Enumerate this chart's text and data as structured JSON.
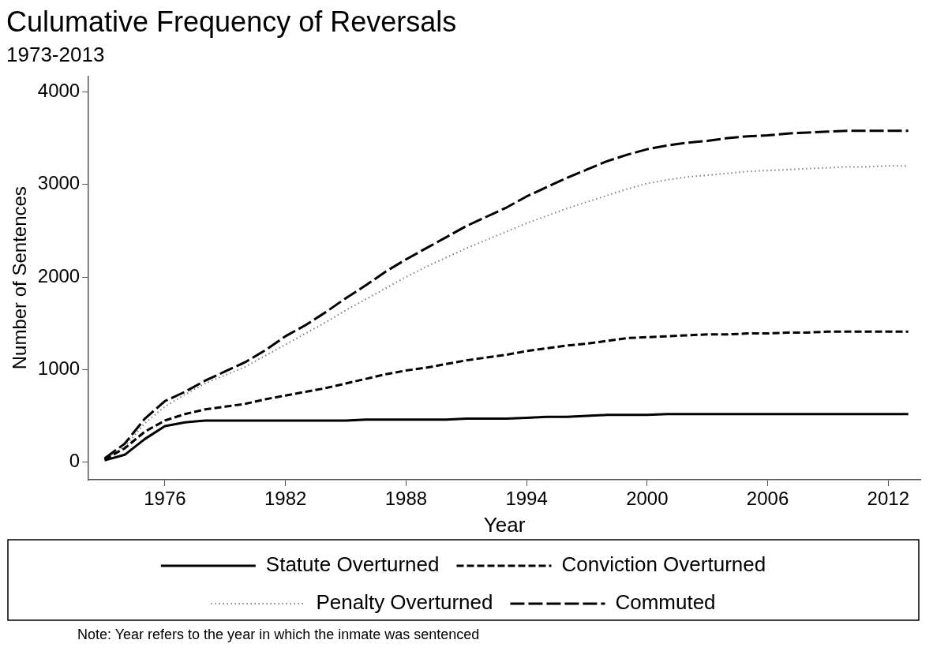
{
  "chart_data": {
    "type": "line",
    "title": "Culumative Frequency of Reversals",
    "subtitle": "1973-2013",
    "xlabel": "Year",
    "ylabel": "Number of Sentences",
    "x": [
      1973,
      1974,
      1975,
      1976,
      1977,
      1978,
      1979,
      1980,
      1981,
      1982,
      1983,
      1984,
      1985,
      1986,
      1987,
      1988,
      1989,
      1990,
      1991,
      1992,
      1993,
      1994,
      1995,
      1996,
      1997,
      1998,
      1999,
      2000,
      2001,
      2002,
      2003,
      2004,
      2005,
      2006,
      2007,
      2008,
      2009,
      2010,
      2011,
      2012,
      2013
    ],
    "xlim": [
      1972.2,
      2013.6
    ],
    "xticks": [
      1976,
      1982,
      1988,
      1994,
      2000,
      2006,
      2012
    ],
    "ylim": [
      -190,
      4170
    ],
    "yticks": [
      0,
      1000,
      2000,
      3000,
      4000
    ],
    "grid": false,
    "legend": "bottom",
    "marker": "none",
    "series": [
      {
        "name": "Statute Overturned",
        "color": "#000000",
        "line_style": "solid",
        "values": [
          20,
          80,
          250,
          390,
          430,
          450,
          450,
          450,
          450,
          450,
          450,
          450,
          450,
          460,
          460,
          460,
          460,
          460,
          470,
          470,
          470,
          480,
          490,
          490,
          500,
          510,
          510,
          510,
          520,
          520,
          520,
          520,
          520,
          520,
          520,
          520,
          520,
          520,
          520,
          520,
          520
        ]
      },
      {
        "name": "Conviction Overturned",
        "color": "#000000",
        "line_style": "dashed",
        "values": [
          30,
          150,
          330,
          450,
          520,
          570,
          600,
          630,
          680,
          720,
          760,
          800,
          850,
          900,
          950,
          990,
          1020,
          1060,
          1100,
          1130,
          1160,
          1200,
          1230,
          1260,
          1280,
          1310,
          1340,
          1350,
          1360,
          1370,
          1380,
          1380,
          1390,
          1390,
          1400,
          1400,
          1410,
          1410,
          1410,
          1410,
          1410
        ]
      },
      {
        "name": "Penalty Overturned",
        "color": "#808080",
        "line_style": "dotted",
        "values": [
          30,
          170,
          420,
          600,
          730,
          850,
          940,
          1030,
          1150,
          1270,
          1390,
          1510,
          1640,
          1760,
          1880,
          2000,
          2110,
          2210,
          2310,
          2400,
          2490,
          2580,
          2660,
          2740,
          2810,
          2880,
          2950,
          3010,
          3050,
          3080,
          3100,
          3120,
          3140,
          3150,
          3160,
          3170,
          3180,
          3190,
          3190,
          3200,
          3200
        ]
      },
      {
        "name": "Commuted",
        "color": "#000000",
        "line_style": "dashed",
        "values": [
          40,
          200,
          470,
          660,
          760,
          880,
          980,
          1080,
          1210,
          1360,
          1480,
          1620,
          1770,
          1910,
          2060,
          2190,
          2310,
          2430,
          2550,
          2650,
          2750,
          2870,
          2970,
          3070,
          3160,
          3250,
          3320,
          3380,
          3420,
          3450,
          3470,
          3500,
          3520,
          3530,
          3550,
          3560,
          3570,
          3580,
          3580,
          3580,
          3580
        ]
      }
    ],
    "annotations": [
      "Note: Year refers to the year in which the inmate was sentenced"
    ]
  }
}
